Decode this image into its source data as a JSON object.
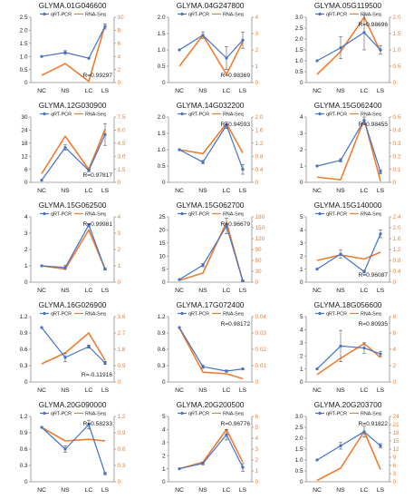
{
  "colors": {
    "qrt": "#4472C4",
    "rna": "#ED7D31",
    "axis": "#8c8c8c"
  },
  "legend": {
    "qrt": "qRT-PCR",
    "rna": "RNA-Seq"
  },
  "chart_data": [
    {
      "type": "line",
      "title": "GLYMA.01G046600",
      "categories": [
        "NC",
        "NS",
        "LC",
        "LS"
      ],
      "ylim_left": [
        0,
        2.5
      ],
      "left_ticks": [
        "0",
        "0.5",
        "1.0",
        "1.5",
        "2.0",
        "2.5"
      ],
      "ylim_right": [
        0,
        10
      ],
      "right_ticks": [
        "0",
        "2",
        "4",
        "6",
        "8",
        "10"
      ],
      "series": [
        {
          "name": "qRT-PCR",
          "axis": "left",
          "values": [
            1.0,
            1.15,
            0.93,
            2.15
          ],
          "errors": [
            0,
            0.07,
            0,
            0.1
          ]
        },
        {
          "name": "RNA-Seq",
          "axis": "right",
          "values": [
            1.1,
            2.9,
            0.2,
            8.8
          ]
        }
      ],
      "r_label": "R=0.99297",
      "r_pos": "bottom-right"
    },
    {
      "type": "line",
      "title": "GLYMA.04G247800",
      "categories": [
        "NC",
        "NS",
        "LC",
        "LS"
      ],
      "ylim_left": [
        0,
        2.0
      ],
      "left_ticks": [
        "0",
        "0.5",
        "1.0",
        "1.5",
        "2.0"
      ],
      "ylim_right": [
        0,
        4
      ],
      "right_ticks": [
        "0",
        "1",
        "2",
        "3",
        "4"
      ],
      "series": [
        {
          "name": "qRT-PCR",
          "axis": "left",
          "values": [
            1.0,
            1.45,
            0.75,
            1.3
          ],
          "errors": [
            0,
            0.1,
            0.35,
            0.25
          ]
        },
        {
          "name": "RNA-Seq",
          "axis": "right",
          "values": [
            1.0,
            2.9,
            0.5,
            2.5
          ]
        }
      ],
      "r_label": "R=0.98369",
      "r_pos": "bottom-right"
    },
    {
      "type": "line",
      "title": "GLYMA.05G119500",
      "categories": [
        "NC",
        "NS",
        "LC",
        "LS"
      ],
      "ylim_left": [
        0,
        3.0
      ],
      "left_ticks": [
        "0",
        "0.5",
        "1.0",
        "1.5",
        "2.0",
        "2.5",
        "3.0"
      ],
      "ylim_right": [
        0,
        2.0
      ],
      "right_ticks": [
        "0",
        "0.5",
        "1.0",
        "1.5",
        "2.0"
      ],
      "series": [
        {
          "name": "qRT-PCR",
          "axis": "left",
          "values": [
            1.0,
            1.6,
            2.3,
            1.5
          ],
          "errors": [
            0,
            0.5,
            0.8,
            0.2
          ]
        },
        {
          "name": "RNA-Seq",
          "axis": "right",
          "values": [
            0.25,
            0.95,
            2.0,
            0.95
          ]
        }
      ],
      "r_label": "R=0.98696",
      "r_pos": "top-right"
    },
    {
      "type": "line",
      "title": "GLYMA.12G030900",
      "categories": [
        "NC",
        "NS",
        "LC",
        "LS"
      ],
      "ylim_left": [
        0,
        30
      ],
      "left_ticks": [
        "0",
        "6",
        "12",
        "18",
        "24",
        "30"
      ],
      "ylim_right": [
        0,
        7.5
      ],
      "right_ticks": [
        "0",
        "1.5",
        "3.0",
        "4.5",
        "6.0",
        "7.5"
      ],
      "series": [
        {
          "name": "qRT-PCR",
          "axis": "left",
          "values": [
            1.0,
            16.0,
            5.5,
            22.0
          ],
          "errors": [
            0,
            1.2,
            0.6,
            5.0
          ]
        },
        {
          "name": "RNA-Seq",
          "axis": "right",
          "values": [
            1.0,
            5.3,
            1.5,
            6.1
          ]
        }
      ],
      "r_label": "R=0.97817",
      "r_pos": "bottom-right"
    },
    {
      "type": "line",
      "title": "GLYMA.14G032200",
      "categories": [
        "NC",
        "NS",
        "LC",
        "LS"
      ],
      "ylim_left": [
        0,
        2.0
      ],
      "left_ticks": [
        "0",
        "0.5",
        "1.0",
        "1.5",
        "2.0"
      ],
      "ylim_right": [
        0,
        2.0
      ],
      "right_ticks": [
        "0",
        "0.4",
        "0.8",
        "1.2",
        "1.6",
        "2.0"
      ],
      "series": [
        {
          "name": "qRT-PCR",
          "axis": "left",
          "values": [
            1.0,
            0.62,
            1.75,
            0.4
          ],
          "errors": [
            0,
            0.05,
            0.1,
            0.15
          ]
        },
        {
          "name": "RNA-Seq",
          "axis": "right",
          "values": [
            1.0,
            0.88,
            1.8,
            0.9
          ]
        }
      ],
      "r_label": "R=0.94593",
      "r_pos": "top-right"
    },
    {
      "type": "line",
      "title": "GLYMA.15G062400",
      "categories": [
        "NC",
        "NS",
        "LC",
        "LS"
      ],
      "ylim_left": [
        0,
        4
      ],
      "left_ticks": [
        "0",
        "1",
        "2",
        "3",
        "4"
      ],
      "ylim_right": [
        0,
        0.5
      ],
      "right_ticks": [
        "0",
        "0.1",
        "0.2",
        "0.3",
        "0.4",
        "0.5"
      ],
      "series": [
        {
          "name": "qRT-PCR",
          "axis": "left",
          "values": [
            1.0,
            1.35,
            3.8,
            0.65
          ],
          "errors": [
            0,
            0.1,
            0.2,
            0.12
          ]
        },
        {
          "name": "RNA-Seq",
          "axis": "right",
          "values": [
            0.04,
            0.02,
            0.48,
            0.01
          ]
        }
      ],
      "r_label": "R=0.98455",
      "r_pos": "top-right"
    },
    {
      "type": "line",
      "title": "GLYMA.15G062500",
      "categories": [
        "NC",
        "NS",
        "LC",
        "LS"
      ],
      "ylim_left": [
        0,
        4
      ],
      "left_ticks": [
        "0",
        "1",
        "2",
        "3",
        "4"
      ],
      "ylim_right": [
        0,
        4
      ],
      "right_ticks": [
        "0",
        "1",
        "2",
        "3",
        "4"
      ],
      "series": [
        {
          "name": "qRT-PCR",
          "axis": "left",
          "values": [
            1.0,
            0.9,
            3.5,
            0.8
          ],
          "errors": [
            0,
            0.12,
            0.1,
            0.05
          ]
        },
        {
          "name": "RNA-Seq",
          "axis": "right",
          "values": [
            1.0,
            0.8,
            3.2,
            0.8
          ]
        }
      ],
      "r_label": "R=0.99981",
      "r_pos": "top-right"
    },
    {
      "type": "line",
      "title": "GLYMA.15G062700",
      "categories": [
        "NC",
        "NS",
        "LC",
        "LS"
      ],
      "ylim_left": [
        0,
        25
      ],
      "left_ticks": [
        "0",
        "5",
        "10",
        "15",
        "20",
        "25"
      ],
      "ylim_right": [
        0,
        180
      ],
      "right_ticks": [
        "0",
        "30",
        "60",
        "90",
        "120",
        "150",
        "180"
      ],
      "series": [
        {
          "name": "qRT-PCR",
          "axis": "left",
          "values": [
            1.0,
            6.5,
            21.5,
            0.5
          ],
          "errors": [
            0,
            0.6,
            3.0,
            0.2
          ]
        },
        {
          "name": "RNA-Seq",
          "axis": "right",
          "values": [
            5,
            25,
            165,
            3
          ]
        }
      ],
      "r_label": "R=0.96679",
      "r_pos": "top-right"
    },
    {
      "type": "line",
      "title": "GLYMA.15G140000",
      "categories": [
        "NC",
        "NS",
        "LC",
        "LS"
      ],
      "ylim_left": [
        0,
        5
      ],
      "left_ticks": [
        "0",
        "1",
        "2",
        "3",
        "4",
        "5"
      ],
      "ylim_right": [
        0,
        2.4
      ],
      "right_ticks": [
        "0",
        "0.4",
        "0.8",
        "1.2",
        "1.6",
        "2.0",
        "2.4"
      ],
      "series": [
        {
          "name": "qRT-PCR",
          "axis": "left",
          "values": [
            1.0,
            2.15,
            0.8,
            3.7
          ],
          "errors": [
            0,
            0.3,
            0.1,
            0.3
          ]
        },
        {
          "name": "RNA-Seq",
          "axis": "right",
          "values": [
            0.8,
            1.0,
            0.85,
            1.1
          ]
        }
      ],
      "r_label": "R=0.96087",
      "r_pos": "bottom-right"
    },
    {
      "type": "line",
      "title": "GLYMA.16G026900",
      "categories": [
        "NC",
        "NS",
        "LC",
        "LS"
      ],
      "ylim_left": [
        0,
        1.2
      ],
      "left_ticks": [
        "0",
        "0.3",
        "0.6",
        "0.9",
        "1.2"
      ],
      "ylim_right": [
        0,
        3.6
      ],
      "right_ticks": [
        "0",
        "0.9",
        "1.8",
        "2.7",
        "3.6"
      ],
      "series": [
        {
          "name": "qRT-PCR",
          "axis": "left",
          "values": [
            1.0,
            0.45,
            0.65,
            0.35
          ],
          "errors": [
            0,
            0.08,
            0.03,
            0.03
          ]
        },
        {
          "name": "RNA-Seq",
          "axis": "right",
          "values": [
            1.0,
            1.6,
            2.7,
            1.2
          ]
        }
      ],
      "r_label": "R=-0.11916",
      "r_pos": "bottom-right"
    },
    {
      "type": "line",
      "title": "GLYMA.17G072400",
      "categories": [
        "NC",
        "NS",
        "LC",
        "LS"
      ],
      "ylim_left": [
        0,
        1.2
      ],
      "left_ticks": [
        "0",
        "0.3",
        "0.6",
        "0.9",
        "1.2"
      ],
      "ylim_right": [
        0,
        0.04
      ],
      "right_ticks": [
        "0",
        "0.01",
        "0.02",
        "0.03",
        "0.04"
      ],
      "series": [
        {
          "name": "qRT-PCR",
          "axis": "left",
          "values": [
            1.0,
            0.28,
            0.2,
            0.24
          ],
          "errors": [
            0,
            0.03,
            0.02,
            0.01
          ]
        },
        {
          "name": "RNA-Seq",
          "axis": "right",
          "values": [
            0.033,
            0.006,
            0.005,
            0.002
          ]
        }
      ],
      "r_label": "R=0.98172",
      "r_pos": "top-right"
    },
    {
      "type": "line",
      "title": "GLYMA.18G056600",
      "categories": [
        "NC",
        "NS",
        "LC",
        "LS"
      ],
      "ylim_left": [
        0,
        5
      ],
      "left_ticks": [
        "0",
        "1",
        "2",
        "3",
        "4",
        "5"
      ],
      "ylim_right": [
        0,
        8
      ],
      "right_ticks": [
        "0",
        "2",
        "4",
        "6",
        "8"
      ],
      "series": [
        {
          "name": "qRT-PCR",
          "axis": "left",
          "values": [
            1.0,
            2.75,
            2.6,
            2.15
          ],
          "errors": [
            0,
            1.2,
            0.4,
            0.2
          ]
        },
        {
          "name": "RNA-Seq",
          "axis": "right",
          "values": [
            0.9,
            2.9,
            4.7,
            3.0
          ]
        }
      ],
      "r_label": "R=0.80935",
      "r_pos": "top-right"
    },
    {
      "type": "line",
      "title": "GLYMA.20G090000",
      "categories": [
        "NC",
        "NS",
        "LC",
        "LS"
      ],
      "ylim_left": [
        0,
        1.2
      ],
      "left_ticks": [
        "0",
        "0.3",
        "0.6",
        "0.9",
        "1.2"
      ],
      "ylim_right": [
        0,
        1.2
      ],
      "right_ticks": [
        "0",
        "0.3",
        "0.6",
        "0.9",
        "1.2"
      ],
      "series": [
        {
          "name": "qRT-PCR",
          "axis": "left",
          "values": [
            1.0,
            0.6,
            1.05,
            0.15
          ],
          "errors": [
            0,
            0.06,
            0.08,
            0.02
          ]
        },
        {
          "name": "RNA-Seq",
          "axis": "right",
          "values": [
            1.0,
            0.75,
            0.78,
            0.75
          ]
        }
      ],
      "r_label": "R=0.58233",
      "r_pos": "top-right"
    },
    {
      "type": "line",
      "title": "GLYMA.20G200500",
      "categories": [
        "NC",
        "NS",
        "LC",
        "LS"
      ],
      "ylim_left": [
        0,
        5
      ],
      "left_ticks": [
        "0",
        "1",
        "2",
        "3",
        "4",
        "5"
      ],
      "ylim_right": [
        0,
        6
      ],
      "right_ticks": [
        "0",
        "1",
        "2",
        "3",
        "4",
        "5",
        "6"
      ],
      "series": [
        {
          "name": "qRT-PCR",
          "axis": "left",
          "values": [
            1.0,
            1.4,
            3.6,
            1.1
          ],
          "errors": [
            0,
            0.1,
            0.4,
            0.3
          ]
        },
        {
          "name": "RNA-Seq",
          "axis": "right",
          "values": [
            1.2,
            1.8,
            4.8,
            1.8
          ]
        }
      ],
      "r_label": "R=0.96776",
      "r_pos": "top-right"
    },
    {
      "type": "line",
      "title": "GLYMA.20G203700",
      "categories": [
        "NC",
        "NS",
        "LC",
        "LS"
      ],
      "ylim_left": [
        0,
        3.0
      ],
      "left_ticks": [
        "0",
        "0.5",
        "1.0",
        "1.5",
        "2.0",
        "2.5",
        "3.0"
      ],
      "ylim_right": [
        0,
        24
      ],
      "right_ticks": [
        "0",
        "3",
        "6",
        "9",
        "12",
        "15",
        "18",
        "21",
        "24"
      ],
      "series": [
        {
          "name": "qRT-PCR",
          "axis": "left",
          "values": [
            1.0,
            1.65,
            2.3,
            1.65
          ],
          "errors": [
            0,
            0.15,
            0.25,
            0.1
          ]
        },
        {
          "name": "RNA-Seq",
          "axis": "right",
          "values": [
            0.5,
            5.0,
            18.5,
            4.5
          ]
        }
      ],
      "r_label": "R=0.91822",
      "r_pos": "top-right"
    }
  ]
}
